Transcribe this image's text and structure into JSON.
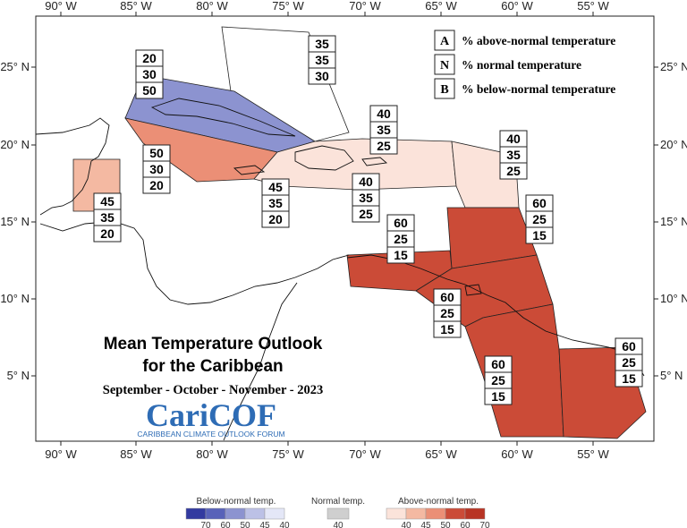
{
  "map": {
    "title_line1": "Mean Temperature Outlook",
    "title_line2": "for the Caribbean",
    "period": "September - October - November - 2023",
    "logo_text": "CariCOF",
    "logo_subtitle": "CARIBBEAN CLIMATE OUTLOOK FORUM",
    "lon_labels": [
      "90° W",
      "85° W",
      "80° W",
      "75° W",
      "70° W",
      "65° W",
      "60° W",
      "55° W"
    ],
    "lat_labels": [
      "25° N",
      "20° N",
      "15° N",
      "10° N",
      "5° N"
    ],
    "legend": [
      {
        "key": "A",
        "text": "% above-normal temperature"
      },
      {
        "key": "N",
        "text": "% normal temperature"
      },
      {
        "key": "B",
        "text": "% below-normal temperature"
      }
    ],
    "regions": [
      {
        "name": "bahamas",
        "probs": [
          "35",
          "35",
          "30"
        ],
        "color": "#ffffff"
      },
      {
        "name": "cuba",
        "probs": [
          "20",
          "30",
          "50"
        ],
        "color": "#8c93d0"
      },
      {
        "name": "jamaica-cayman",
        "probs": [
          "50",
          "30",
          "20"
        ],
        "color": "#eb8f76"
      },
      {
        "name": "belize",
        "probs": [
          "45",
          "35",
          "20"
        ],
        "color": "#f4b9a2"
      },
      {
        "name": "hispaniola-pr",
        "probs": [
          "45",
          "35",
          "20"
        ],
        "color": "#fbe3da"
      },
      {
        "name": "central-caribbean-sea",
        "probs": [
          "40",
          "35",
          "25"
        ],
        "color": "#fbe3da"
      },
      {
        "name": "turks-caicos",
        "probs": [
          "40",
          "35",
          "25"
        ],
        "color": "#fbe3da"
      },
      {
        "name": "leeward-islands",
        "probs": [
          "40",
          "35",
          "25"
        ],
        "color": "#fbe3da"
      },
      {
        "name": "windward-islands",
        "probs": [
          "60",
          "25",
          "15"
        ],
        "color": "#cb4b37"
      },
      {
        "name": "abc-islands",
        "probs": [
          "60",
          "25",
          "15"
        ],
        "color": "#cb4b37"
      },
      {
        "name": "trinidad",
        "probs": [
          "60",
          "25",
          "15"
        ],
        "color": "#cb4b37"
      },
      {
        "name": "guyana",
        "probs": [
          "60",
          "25",
          "15"
        ],
        "color": "#cb4b37"
      },
      {
        "name": "suriname-fg",
        "probs": [
          "60",
          "25",
          "15"
        ],
        "color": "#cb4b37"
      }
    ]
  },
  "colorbar": {
    "below": {
      "title": "Below-normal temp.",
      "ticks": [
        "70",
        "60",
        "50",
        "45",
        "40"
      ],
      "colors": [
        "#323aa0",
        "#5862b9",
        "#8c93d0",
        "#bcc1e6",
        "#e4e7f7"
      ]
    },
    "normal": {
      "title": "Normal temp.",
      "ticks": [
        "40"
      ],
      "colors": [
        "#cfcfcf"
      ]
    },
    "above": {
      "title": "Above-normal temp.",
      "ticks": [
        "40",
        "45",
        "50",
        "60",
        "70"
      ],
      "colors": [
        "#fbe3da",
        "#f4b9a2",
        "#eb8f76",
        "#cb4b37",
        "#b83424"
      ]
    }
  }
}
